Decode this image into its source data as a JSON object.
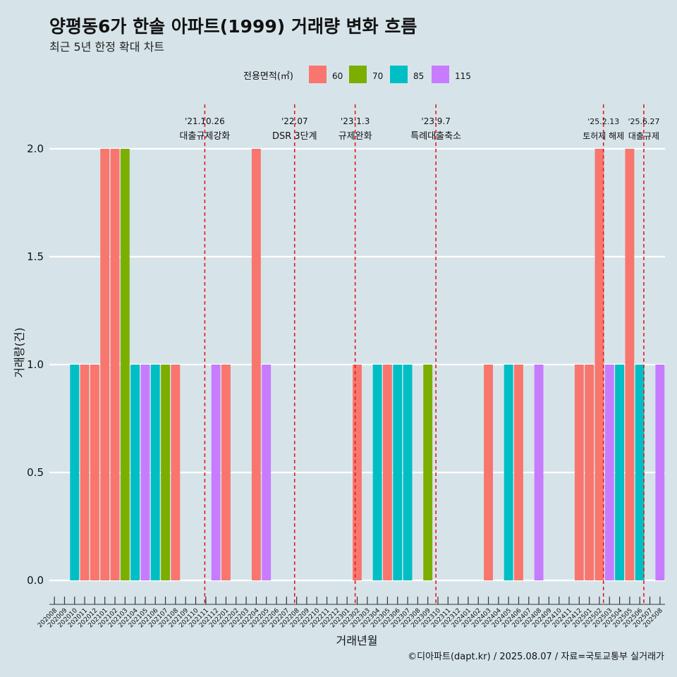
{
  "title": "양평동6가 한솔 아파트(1999) 거래량 변화 흐름",
  "subtitle": "최근 5년 한정 확대 차트",
  "caption": "©디아파트(dapt.kr) / 2025.08.07 / 자료=국토교통부 실거래가",
  "colors": {
    "60": "#f8766d",
    "70": "#7cae00",
    "85": "#00bfc4",
    "115": "#c77cff",
    "background": "#d6e4ea",
    "event_line": "#e41a1c"
  },
  "chart_data": {
    "type": "bar",
    "xlabel": "거래년월",
    "ylabel": "거래량(건)",
    "ylim": [
      0,
      2
    ],
    "y_ticks": [
      "0.0",
      "0.5",
      "1.0",
      "1.5",
      "2.0"
    ],
    "grid": true,
    "legend_title": "전용면적(㎡)",
    "legend_position": "top",
    "categories": [
      "202008",
      "202009",
      "202010",
      "202011",
      "202012",
      "202101",
      "202102",
      "202103",
      "202104",
      "202105",
      "202106",
      "202107",
      "202108",
      "202109",
      "202110",
      "202111",
      "202112",
      "202201",
      "202202",
      "202203",
      "202204",
      "202205",
      "202206",
      "202207",
      "202208",
      "202209",
      "202210",
      "202211",
      "202212",
      "202301",
      "202302",
      "202303",
      "202304",
      "202305",
      "202306",
      "202307",
      "202308",
      "202309",
      "202310",
      "202311",
      "202312",
      "202401",
      "202402",
      "202403",
      "202404",
      "202405",
      "202406",
      "202407",
      "202408",
      "202409",
      "202410",
      "202411",
      "202412",
      "202501",
      "202502",
      "202503",
      "202504",
      "202505",
      "202506",
      "202507",
      "202508"
    ],
    "series": [
      {
        "name": "60",
        "values": {
          "202011": 1,
          "202012": 1,
          "202101": 2,
          "202102": 2,
          "202108": 1,
          "202201": 1,
          "202204": 2,
          "202302": 1,
          "202305": 1,
          "202403": 1,
          "202406": 1,
          "202412": 1,
          "202501": 1,
          "202502": 2,
          "202505": 2
        }
      },
      {
        "name": "70",
        "values": {
          "202103": 2,
          "202107": 1,
          "202309": 1
        }
      },
      {
        "name": "85",
        "values": {
          "202010": 1,
          "202104": 1,
          "202106": 1,
          "202304": 1,
          "202306": 1,
          "202307": 1,
          "202405": 1,
          "202504": 1,
          "202506": 1
        }
      },
      {
        "name": "115",
        "values": {
          "202105": 1,
          "202112": 1,
          "202205": 1,
          "202408": 1,
          "202503": 1,
          "202508": 1
        }
      }
    ],
    "events": [
      {
        "date": "'21.10.26",
        "label": "대출규제강화",
        "pos": 14.9
      },
      {
        "date": "'22.07",
        "label": "DSR 3단계",
        "pos": 23.8
      },
      {
        "date": "'23.1.3",
        "label": "규제완화",
        "pos": 29.8
      },
      {
        "date": "'23.9.7",
        "label": "특례대출축소",
        "pos": 37.8
      },
      {
        "date": "'25.2.13",
        "label": "토허제 해제",
        "pos": 54.4
      },
      {
        "date": "'25.6.27",
        "label": "대출규제",
        "pos": 58.4
      }
    ]
  }
}
